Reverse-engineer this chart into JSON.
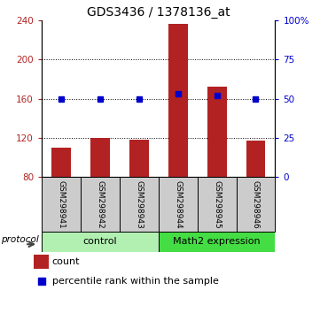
{
  "title": "GDS3436 / 1378136_at",
  "samples": [
    "GSM298941",
    "GSM298942",
    "GSM298943",
    "GSM298944",
    "GSM298945",
    "GSM298946"
  ],
  "bar_values": [
    110,
    120,
    118,
    236,
    172,
    117
  ],
  "percentile_values": [
    50,
    50,
    50,
    53,
    52,
    50
  ],
  "ylim_left": [
    80,
    240
  ],
  "ylim_right": [
    0,
    100
  ],
  "yticks_left": [
    80,
    120,
    160,
    200,
    240
  ],
  "yticks_right": [
    0,
    25,
    50,
    75,
    100
  ],
  "ytick_labels_right": [
    "0",
    "25",
    "50",
    "75",
    "100%"
  ],
  "bar_color": "#b22222",
  "dot_color": "#0000cc",
  "bar_width": 0.5,
  "legend_items": [
    "count",
    "percentile rank within the sample"
  ],
  "protocol_label": "protocol",
  "control_color": "#b2f0b2",
  "math2_color": "#44dd44",
  "sample_box_color": "#cccccc"
}
